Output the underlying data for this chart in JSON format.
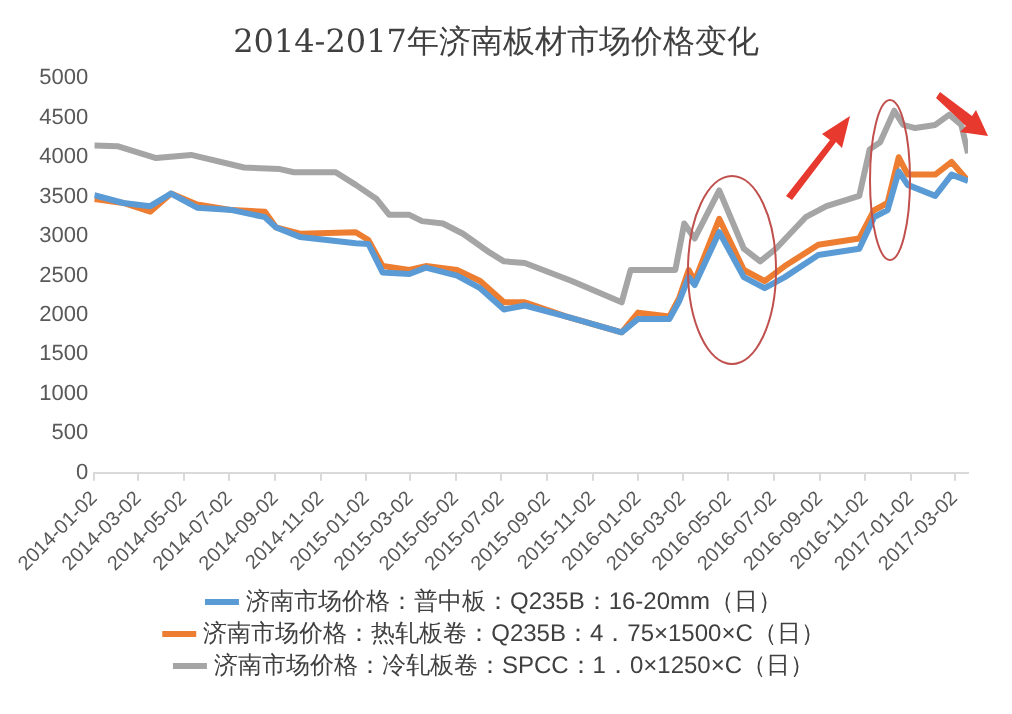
{
  "chart_data": {
    "type": "line",
    "title": "2014-2017年济南板材市场价格变化",
    "xlim": [
      "2014-01-02",
      "2017-03-20"
    ],
    "xticks": [
      "2014-01-02",
      "2014-03-02",
      "2014-05-02",
      "2014-07-02",
      "2014-09-02",
      "2014-11-02",
      "2015-01-02",
      "2015-03-02",
      "2015-05-02",
      "2015-07-02",
      "2015-09-02",
      "2015-11-02",
      "2016-01-02",
      "2016-03-02",
      "2016-05-02",
      "2016-07-02",
      "2016-09-02",
      "2016-11-02",
      "2017-01-02",
      "2017-03-02"
    ],
    "ylim": [
      0,
      5000
    ],
    "yticks": [
      0,
      500,
      1000,
      1500,
      2000,
      2500,
      3000,
      3500,
      4000,
      4500,
      5000
    ],
    "grid": false,
    "legend": "bottom",
    "marker": "none",
    "line_style": "solid",
    "series": [
      {
        "name": "济南市场价格：普中板：Q235B：16-20mm（日）",
        "color": "#5b9bd5",
        "x": [
          "2014-01-02",
          "2014-02-10",
          "2014-03-18",
          "2014-04-15",
          "2014-05-20",
          "2014-07-06",
          "2014-08-19",
          "2014-09-03",
          "2014-10-05",
          "2014-12-19",
          "2015-01-05",
          "2015-01-24",
          "2015-03-01",
          "2015-03-23",
          "2015-05-04",
          "2015-06-04",
          "2015-07-06",
          "2015-08-03",
          "2015-09-28",
          "2015-12-11",
          "2016-01-02",
          "2016-02-13",
          "2016-02-26",
          "2016-03-10",
          "2016-03-18",
          "2016-04-20",
          "2016-05-23",
          "2016-06-20",
          "2016-07-17",
          "2016-08-31",
          "2016-10-25",
          "2016-11-14",
          "2016-12-02",
          "2016-12-17",
          "2016-12-29",
          "2017-02-04",
          "2017-02-26",
          "2017-03-20"
        ],
        "values": [
          3520,
          3420,
          3380,
          3540,
          3360,
          3330,
          3240,
          3110,
          2990,
          2910,
          2900,
          2540,
          2520,
          2600,
          2500,
          2340,
          2070,
          2120,
          1980,
          1780,
          1950,
          1950,
          2170,
          2480,
          2380,
          3050,
          2480,
          2340,
          2480,
          2760,
          2840,
          3240,
          3330,
          3820,
          3650,
          3510,
          3780,
          3700
        ]
      },
      {
        "name": "济南市场价格：热轧板卷：Q235B：4．75×1500×C（日）",
        "color": "#ed7d31",
        "x": [
          "2014-01-02",
          "2014-02-10",
          "2014-03-18",
          "2014-04-15",
          "2014-05-20",
          "2014-07-06",
          "2014-08-19",
          "2014-09-03",
          "2014-10-05",
          "2014-12-19",
          "2015-01-05",
          "2015-01-24",
          "2015-03-01",
          "2015-03-23",
          "2015-05-04",
          "2015-06-04",
          "2015-07-06",
          "2015-08-03",
          "2015-09-28",
          "2015-12-11",
          "2016-01-02",
          "2016-02-13",
          "2016-02-26",
          "2016-03-10",
          "2016-03-18",
          "2016-04-20",
          "2016-05-23",
          "2016-06-20",
          "2016-07-17",
          "2016-08-31",
          "2016-10-25",
          "2016-11-14",
          "2016-12-02",
          "2016-12-17",
          "2016-12-29",
          "2017-02-04",
          "2017-02-26",
          "2017-03-20"
        ],
        "values": [
          3470,
          3420,
          3310,
          3540,
          3400,
          3330,
          3310,
          3110,
          3030,
          3050,
          2950,
          2620,
          2570,
          2620,
          2570,
          2430,
          2160,
          2160,
          1980,
          1780,
          2030,
          1980,
          2210,
          2570,
          2430,
          3220,
          2570,
          2430,
          2620,
          2890,
          2970,
          3330,
          3420,
          4000,
          3780,
          3780,
          3940,
          3700
        ]
      },
      {
        "name": "济南市场价格：冷轧板卷：SPCC：1．0×1250×C（日）",
        "color": "#a5a5a5",
        "x": [
          "2014-01-02",
          "2014-02-02",
          "2014-03-26",
          "2014-05-12",
          "2014-07-22",
          "2014-09-08",
          "2014-09-27",
          "2014-11-22",
          "2014-12-19",
          "2015-01-16",
          "2015-02-02",
          "2015-03-01",
          "2015-03-18",
          "2015-04-15",
          "2015-05-12",
          "2015-06-17",
          "2015-07-06",
          "2015-08-03",
          "2015-10-05",
          "2015-12-11",
          "2015-12-23",
          "2016-02-21",
          "2016-03-04",
          "2016-03-18",
          "2016-04-20",
          "2016-05-23",
          "2016-06-14",
          "2016-07-05",
          "2016-08-14",
          "2016-09-11",
          "2016-10-25",
          "2016-11-08",
          "2016-11-22",
          "2016-12-11",
          "2016-12-23",
          "2017-01-08",
          "2017-02-04",
          "2017-02-23",
          "2017-03-11",
          "2017-03-20"
        ],
        "values": [
          4150,
          4140,
          3990,
          4030,
          3870,
          3850,
          3810,
          3810,
          3650,
          3470,
          3270,
          3270,
          3190,
          3160,
          3030,
          2790,
          2680,
          2660,
          2430,
          2160,
          2570,
          2570,
          3160,
          2970,
          3580,
          2840,
          2680,
          2840,
          3240,
          3380,
          3510,
          4100,
          4190,
          4590,
          4410,
          4370,
          4410,
          4540,
          4410,
          4050
        ]
      }
    ]
  }
}
